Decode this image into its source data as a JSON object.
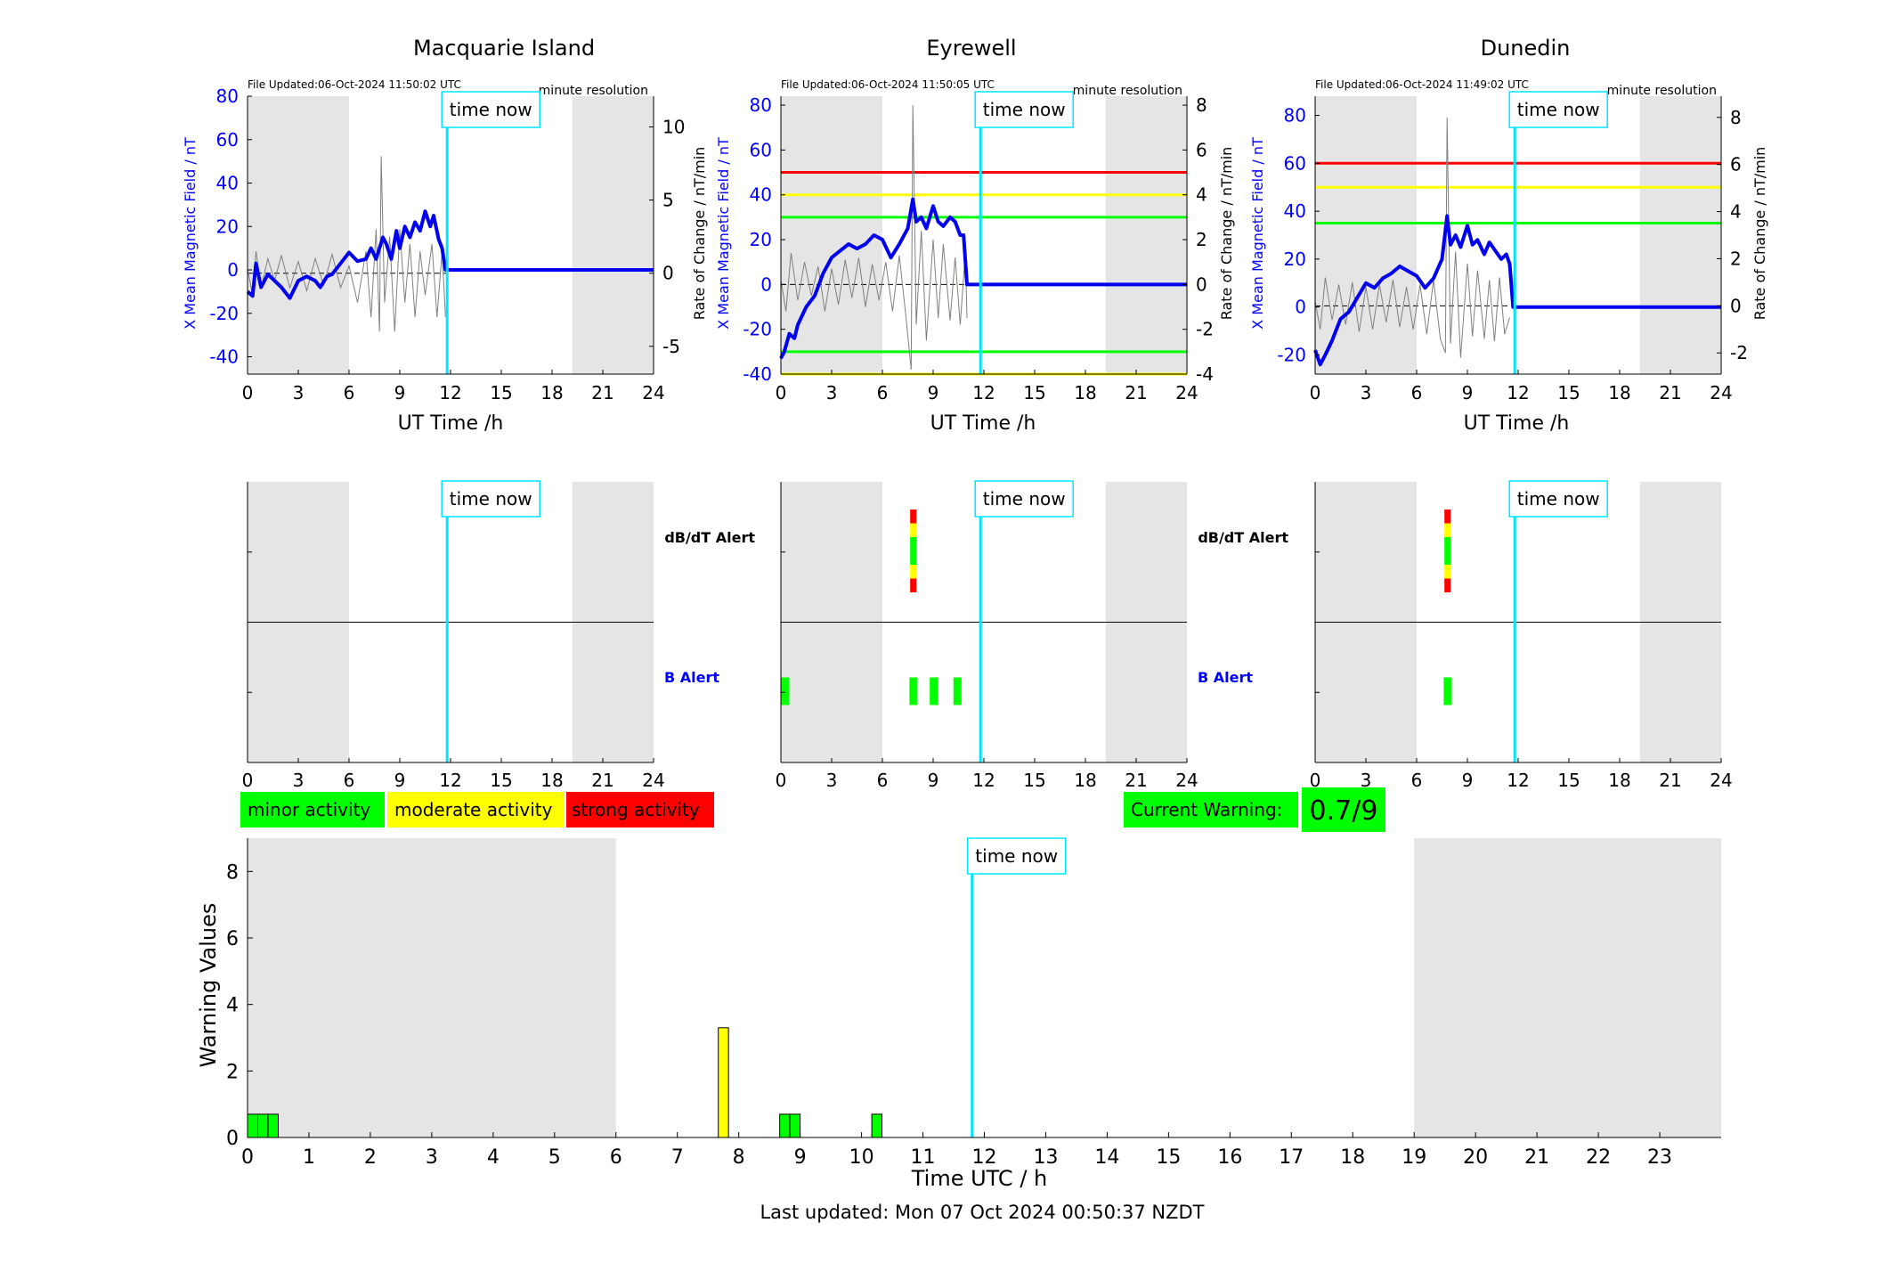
{
  "stations": [
    {
      "name": "Macquarie Island",
      "file_updated": "File Updated:06-Oct-2024 11:50:02 UTC",
      "resolution": "minute resolution",
      "time_now_label": "time now",
      "ylabel": "X Mean Magnetic Field / nT",
      "y2label": "Rate of Change / nT/min",
      "xlabel": "UT Time /h",
      "xticks": [
        "0",
        "3",
        "6",
        "9",
        "12",
        "15",
        "18",
        "21",
        "24"
      ],
      "ylim": [
        -48,
        80
      ],
      "yticks": [
        "-40",
        "-20",
        "0",
        "20",
        "40",
        "60",
        "80"
      ],
      "y2lim": [
        -6.9,
        12.1
      ],
      "y2ticks": [
        "-5",
        "0",
        "5",
        "10"
      ],
      "time_now_h": 11.8,
      "night_bands": [
        [
          0,
          6
        ],
        [
          19.2,
          24
        ]
      ],
      "thresholds_b": [],
      "thresholds_rate": [],
      "b_series": [
        [
          0,
          -10
        ],
        [
          0.3,
          -12
        ],
        [
          0.5,
          3
        ],
        [
          0.8,
          -8
        ],
        [
          1.2,
          -2
        ],
        [
          1.6,
          -5
        ],
        [
          2,
          -8
        ],
        [
          2.5,
          -13
        ],
        [
          3,
          -5
        ],
        [
          3.5,
          -3
        ],
        [
          4,
          -5
        ],
        [
          4.3,
          -8
        ],
        [
          4.7,
          -3
        ],
        [
          5,
          -2
        ],
        [
          5.5,
          3
        ],
        [
          6,
          8
        ],
        [
          6.5,
          4
        ],
        [
          7,
          5
        ],
        [
          7.3,
          10
        ],
        [
          7.6,
          5
        ],
        [
          8,
          15
        ],
        [
          8.2,
          12
        ],
        [
          8.5,
          5
        ],
        [
          8.8,
          18
        ],
        [
          9,
          10
        ],
        [
          9.3,
          20
        ],
        [
          9.6,
          15
        ],
        [
          9.9,
          22
        ],
        [
          10.2,
          18
        ],
        [
          10.5,
          27
        ],
        [
          10.8,
          20
        ],
        [
          11,
          25
        ],
        [
          11.3,
          14
        ],
        [
          11.5,
          10
        ],
        [
          11.7,
          0
        ],
        [
          11.8,
          0
        ],
        [
          24,
          0
        ]
      ],
      "rate_series": [
        [
          0,
          0.3
        ],
        [
          0.3,
          -1.5
        ],
        [
          0.5,
          1.5
        ],
        [
          0.8,
          -1
        ],
        [
          1.2,
          1
        ],
        [
          1.6,
          -0.5
        ],
        [
          2,
          1.2
        ],
        [
          2.5,
          -1
        ],
        [
          3,
          0.8
        ],
        [
          3.5,
          -1.2
        ],
        [
          4,
          1
        ],
        [
          4.5,
          -0.8
        ],
        [
          5,
          1.3
        ],
        [
          5.5,
          -1
        ],
        [
          6,
          0.5
        ],
        [
          6.5,
          -2
        ],
        [
          7,
          1.5
        ],
        [
          7.3,
          -3
        ],
        [
          7.6,
          3
        ],
        [
          7.8,
          -4
        ],
        [
          7.9,
          8
        ],
        [
          8.1,
          -2
        ],
        [
          8.4,
          2.5
        ],
        [
          8.7,
          -4
        ],
        [
          9,
          3
        ],
        [
          9.3,
          -2
        ],
        [
          9.6,
          2
        ],
        [
          9.9,
          -3
        ],
        [
          10.2,
          1.5
        ],
        [
          10.5,
          -1.5
        ],
        [
          10.9,
          2
        ],
        [
          11.2,
          -3
        ],
        [
          11.5,
          1.5
        ],
        [
          11.7,
          -3
        ]
      ],
      "db_alert_segments": [],
      "b_alert_bars": []
    },
    {
      "name": "Eyrewell",
      "file_updated": "File Updated:06-Oct-2024 11:50:05 UTC",
      "resolution": "minute resolution",
      "time_now_label": "time now",
      "ylabel": "X Mean Magnetic Field / nT",
      "y2label": "Rate of Change / nT/min",
      "xlabel": "UT Time /h",
      "xticks": [
        "0",
        "3",
        "6",
        "9",
        "12",
        "15",
        "18",
        "21",
        "24"
      ],
      "ylim": [
        -40,
        84
      ],
      "yticks": [
        "-40",
        "-20",
        "0",
        "20",
        "40",
        "60",
        "80"
      ],
      "y2lim": [
        -4.0,
        8.4
      ],
      "y2ticks": [
        "-4",
        "-2",
        "0",
        "2",
        "4",
        "6",
        "8"
      ],
      "time_now_h": 11.8,
      "night_bands": [
        [
          0,
          6
        ],
        [
          19.2,
          24
        ]
      ],
      "thresholds_b": [
        {
          "value": 50,
          "color": "#ff0000"
        },
        {
          "value": 40,
          "color": "#ffff00"
        },
        {
          "value": 30,
          "color": "#00ff00"
        },
        {
          "value": -30,
          "color": "#00ff00"
        },
        {
          "value": -40,
          "color": "#ffff00"
        }
      ],
      "thresholds_rate": [],
      "b_series": [
        [
          0,
          -33
        ],
        [
          0.2,
          -30
        ],
        [
          0.5,
          -22
        ],
        [
          0.8,
          -24
        ],
        [
          1,
          -18
        ],
        [
          1.5,
          -10
        ],
        [
          2,
          -5
        ],
        [
          2.5,
          5
        ],
        [
          3,
          12
        ],
        [
          3.5,
          15
        ],
        [
          4,
          18
        ],
        [
          4.5,
          16
        ],
        [
          5,
          18
        ],
        [
          5.5,
          22
        ],
        [
          6,
          20
        ],
        [
          6.5,
          12
        ],
        [
          7,
          18
        ],
        [
          7.5,
          25
        ],
        [
          7.8,
          38
        ],
        [
          8,
          28
        ],
        [
          8.3,
          30
        ],
        [
          8.6,
          25
        ],
        [
          9,
          35
        ],
        [
          9.3,
          28
        ],
        [
          9.6,
          26
        ],
        [
          10,
          30
        ],
        [
          10.3,
          28
        ],
        [
          10.6,
          22
        ],
        [
          10.8,
          22
        ],
        [
          11,
          0
        ],
        [
          24,
          0
        ]
      ],
      "rate_series": [
        [
          0,
          0.2
        ],
        [
          0.3,
          -1.2
        ],
        [
          0.6,
          1.4
        ],
        [
          1,
          -0.7
        ],
        [
          1.4,
          1
        ],
        [
          1.8,
          -0.5
        ],
        [
          2.2,
          0.8
        ],
        [
          2.6,
          -1.2
        ],
        [
          3,
          0.7
        ],
        [
          3.4,
          -0.9
        ],
        [
          3.8,
          1.1
        ],
        [
          4.2,
          -0.6
        ],
        [
          4.6,
          1.2
        ],
        [
          5,
          -1
        ],
        [
          5.4,
          0.9
        ],
        [
          5.8,
          -0.7
        ],
        [
          6.2,
          1
        ],
        [
          6.6,
          -1.2
        ],
        [
          7,
          1.3
        ],
        [
          7.4,
          -1.5
        ],
        [
          7.7,
          -3.8
        ],
        [
          7.8,
          8
        ],
        [
          8,
          -1.8
        ],
        [
          8.3,
          2.4
        ],
        [
          8.6,
          -2.5
        ],
        [
          9,
          2
        ],
        [
          9.3,
          -1.5
        ],
        [
          9.6,
          1.8
        ],
        [
          10,
          -1.6
        ],
        [
          10.3,
          1.2
        ],
        [
          10.6,
          -1.8
        ],
        [
          10.9,
          1.4
        ],
        [
          11,
          -1.5
        ]
      ],
      "db_alert_segments": [
        {
          "h": 7.8,
          "colors": [
            "#ff0000",
            "#ffff00",
            "#00ff00",
            "#00ff00",
            "#ffff00",
            "#ff0000"
          ]
        }
      ],
      "b_alert_bars": [
        [
          0,
          0.5
        ],
        [
          7.6,
          8
        ],
        [
          8.8,
          9.3
        ],
        [
          10.2,
          10.6
        ]
      ]
    },
    {
      "name": "Dunedin",
      "file_updated": "File Updated:06-Oct-2024 11:49:02 UTC",
      "resolution": "minute resolution",
      "time_now_label": "time now",
      "ylabel": "X Mean Magnetic Field / nT",
      "y2label": "Rate of Change / nT/min",
      "xlabel": "UT Time /h",
      "xticks": [
        "0",
        "3",
        "6",
        "9",
        "12",
        "15",
        "18",
        "21",
        "24"
      ],
      "ylim": [
        -28,
        88
      ],
      "yticks": [
        "-20",
        "0",
        "20",
        "40",
        "60",
        "80"
      ],
      "y2lim": [
        -2.9,
        8.9
      ],
      "y2ticks": [
        "-2",
        "0",
        "2",
        "4",
        "6",
        "8"
      ],
      "time_now_h": 11.8,
      "night_bands": [
        [
          0,
          6
        ],
        [
          19.2,
          24
        ]
      ],
      "thresholds_b": [
        {
          "value": 60,
          "color": "#ff0000"
        },
        {
          "value": 50,
          "color": "#ffff00"
        },
        {
          "value": 35,
          "color": "#00ff00"
        }
      ],
      "thresholds_rate": [],
      "b_series": [
        [
          0,
          -18
        ],
        [
          0.3,
          -24
        ],
        [
          0.6,
          -20
        ],
        [
          1,
          -14
        ],
        [
          1.5,
          -5
        ],
        [
          2,
          -2
        ],
        [
          2.5,
          4
        ],
        [
          3,
          10
        ],
        [
          3.5,
          8
        ],
        [
          4,
          12
        ],
        [
          4.5,
          14
        ],
        [
          5,
          17
        ],
        [
          5.5,
          15
        ],
        [
          6,
          13
        ],
        [
          6.5,
          8
        ],
        [
          7,
          12
        ],
        [
          7.5,
          20
        ],
        [
          7.8,
          38
        ],
        [
          8,
          26
        ],
        [
          8.3,
          30
        ],
        [
          8.6,
          25
        ],
        [
          9,
          34
        ],
        [
          9.3,
          26
        ],
        [
          9.6,
          28
        ],
        [
          10,
          22
        ],
        [
          10.3,
          27
        ],
        [
          10.6,
          24
        ],
        [
          11,
          20
        ],
        [
          11.3,
          22
        ],
        [
          11.5,
          18
        ],
        [
          11.7,
          0
        ],
        [
          24,
          0
        ]
      ],
      "rate_series": [
        [
          0,
          0.2
        ],
        [
          0.3,
          -1
        ],
        [
          0.6,
          1.2
        ],
        [
          1,
          -0.6
        ],
        [
          1.4,
          0.9
        ],
        [
          1.8,
          -0.8
        ],
        [
          2.2,
          1
        ],
        [
          2.6,
          -1.1
        ],
        [
          3,
          0.8
        ],
        [
          3.4,
          -1
        ],
        [
          3.8,
          0.9
        ],
        [
          4.2,
          -0.7
        ],
        [
          4.6,
          1.1
        ],
        [
          5,
          -0.9
        ],
        [
          5.4,
          0.8
        ],
        [
          5.8,
          -1
        ],
        [
          6.2,
          0.9
        ],
        [
          6.6,
          -1.2
        ],
        [
          7,
          1.1
        ],
        [
          7.4,
          -1.4
        ],
        [
          7.7,
          -2
        ],
        [
          7.8,
          8
        ],
        [
          8,
          -1.6
        ],
        [
          8.3,
          2.3
        ],
        [
          8.6,
          -2.2
        ],
        [
          9,
          1.8
        ],
        [
          9.3,
          -1.3
        ],
        [
          9.6,
          1.5
        ],
        [
          10,
          -1.4
        ],
        [
          10.3,
          1.1
        ],
        [
          10.6,
          -1.5
        ],
        [
          10.9,
          1.2
        ],
        [
          11.2,
          -1.2
        ],
        [
          11.5,
          -0.5
        ]
      ],
      "db_alert_segments": [
        {
          "h": 7.8,
          "colors": [
            "#ff0000",
            "#ffff00",
            "#00ff00",
            "#00ff00",
            "#ffff00",
            "#ff0000"
          ]
        }
      ],
      "b_alert_bars": [
        [
          7.6,
          8
        ]
      ]
    }
  ],
  "alert_labels": {
    "dbdt": "dB/dT Alert",
    "b": "B Alert"
  },
  "legend": {
    "minor": "minor activity",
    "moderate": "moderate activity",
    "strong": "strong activity",
    "minor_color": "#00ff00",
    "moderate_color": "#ffff00",
    "strong_color": "#ff0000"
  },
  "current_warning": {
    "label": "Current Warning:",
    "value": "0.7/9"
  },
  "chart_data": {
    "type": "bar",
    "ylabel": "Warning Values",
    "xlabel": "Time UTC / h",
    "ylim": [
      0,
      9
    ],
    "yticks": [
      "0",
      "2",
      "4",
      "6",
      "8"
    ],
    "xlim": [
      0,
      24
    ],
    "xticks": [
      "0",
      "1",
      "2",
      "3",
      "4",
      "5",
      "6",
      "7",
      "8",
      "9",
      "10",
      "11",
      "12",
      "13",
      "14",
      "15",
      "16",
      "17",
      "18",
      "19",
      "20",
      "21",
      "22",
      "23"
    ],
    "time_now_label": "time now",
    "time_now_h": 11.8,
    "night_bands": [
      [
        0,
        6
      ],
      [
        19,
        24
      ]
    ],
    "bars": [
      {
        "start": 0,
        "end": 0.167,
        "value": 0.7,
        "color": "#00ff00"
      },
      {
        "start": 0.167,
        "end": 0.333,
        "value": 0.7,
        "color": "#00ff00"
      },
      {
        "start": 0.333,
        "end": 0.5,
        "value": 0.7,
        "color": "#00ff00"
      },
      {
        "start": 7.667,
        "end": 7.833,
        "value": 3.3,
        "color": "#ffff00"
      },
      {
        "start": 8.667,
        "end": 8.833,
        "value": 0.7,
        "color": "#00ff00"
      },
      {
        "start": 8.833,
        "end": 9.0,
        "value": 0.7,
        "color": "#00ff00"
      },
      {
        "start": 10.167,
        "end": 10.333,
        "value": 0.7,
        "color": "#00ff00"
      }
    ]
  },
  "footer": {
    "last_updated": "Last updated: Mon 07 Oct 2024 00:50:37 NZDT"
  }
}
